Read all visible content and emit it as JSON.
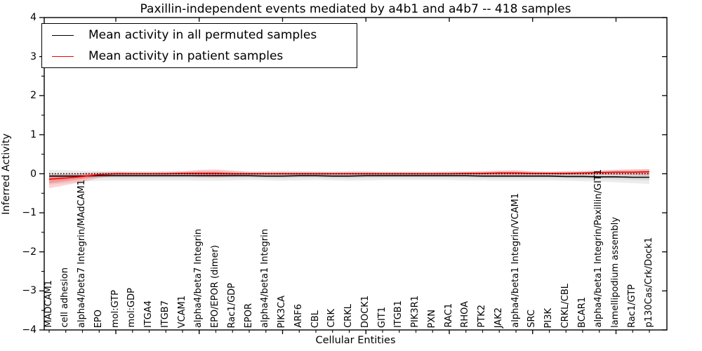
{
  "figure": {
    "title": "Paxillin-independent events mediated by a4b1 and a4b7 -- 418 samples",
    "xlabel": "Cellular Entities",
    "ylabel": "Inferred Activity"
  },
  "legend": {
    "items": [
      {
        "label": "Mean activity in all permuted samples",
        "color": "#000000"
      },
      {
        "label": "Mean activity in patient samples",
        "color": "#ff0000"
      }
    ],
    "position": "upper left"
  },
  "chart_data": {
    "type": "line",
    "title": "Paxillin-independent events mediated by a4b1 and a4b7 -- 418 samples",
    "xlabel": "Cellular Entities",
    "ylabel": "Inferred Activity",
    "ylim": [
      -4,
      4
    ],
    "yticks": [
      4,
      3,
      2,
      1,
      0,
      -1,
      -2,
      -3,
      -4
    ],
    "grid": false,
    "zero_line": true,
    "legend_position": "upper left",
    "categories": [
      "MADCAM1",
      "cell adhesion",
      "alpha4/beta7 Integrin/MAdCAM1",
      "EPO",
      "mol:GTP",
      "mol:GDP",
      "ITGA4",
      "ITGB7",
      "VCAM1",
      "alpha4/beta7 Integrin",
      "EPO/EPOR (dimer)",
      "Rac1/GDP",
      "EPOR",
      "alpha4/beta1 Integrin",
      "PIK3CA",
      "ARF6",
      "CBL",
      "CRK",
      "CRKL",
      "DOCK1",
      "GIT1",
      "ITGB1",
      "PIK3R1",
      "PXN",
      "RAC1",
      "RHOA",
      "PTK2",
      "JAK2",
      "alpha4/beta1 Integrin/VCAM1",
      "SRC",
      "PI3K",
      "CRKL/CBL",
      "BCAR1",
      "alpha4/beta1 Integrin/Paxillin/GIT1",
      "lamellipodium assembly",
      "Rac1/GTP",
      "p130Cas/Crk/Dock1"
    ],
    "series": [
      {
        "name": "Mean activity in all permuted samples",
        "color": "#000000",
        "band_color": "#aaaaaa",
        "values": [
          -0.06,
          -0.06,
          -0.06,
          -0.05,
          -0.05,
          -0.05,
          -0.05,
          -0.05,
          -0.05,
          -0.05,
          -0.05,
          -0.05,
          -0.05,
          -0.06,
          -0.06,
          -0.05,
          -0.05,
          -0.06,
          -0.06,
          -0.05,
          -0.05,
          -0.05,
          -0.05,
          -0.05,
          -0.05,
          -0.05,
          -0.06,
          -0.06,
          -0.06,
          -0.06,
          -0.06,
          -0.07,
          -0.07,
          -0.08,
          -0.08,
          -0.09,
          -0.09
        ],
        "band_lower": [
          -0.28,
          -0.24,
          -0.2,
          -0.18,
          -0.17,
          -0.17,
          -0.17,
          -0.17,
          -0.17,
          -0.18,
          -0.18,
          -0.17,
          -0.16,
          -0.17,
          -0.18,
          -0.17,
          -0.16,
          -0.17,
          -0.18,
          -0.17,
          -0.16,
          -0.16,
          -0.16,
          -0.16,
          -0.16,
          -0.17,
          -0.17,
          -0.18,
          -0.18,
          -0.17,
          -0.17,
          -0.18,
          -0.19,
          -0.2,
          -0.22,
          -0.24,
          -0.26
        ],
        "band_upper": [
          0.1,
          0.09,
          0.08,
          0.07,
          0.07,
          0.07,
          0.07,
          0.07,
          0.07,
          0.08,
          0.08,
          0.07,
          0.06,
          0.07,
          0.08,
          0.07,
          0.06,
          0.06,
          0.07,
          0.07,
          0.06,
          0.06,
          0.06,
          0.06,
          0.06,
          0.07,
          0.07,
          0.07,
          0.07,
          0.06,
          0.06,
          0.07,
          0.08,
          0.09,
          0.1,
          0.11,
          0.12
        ]
      },
      {
        "name": "Mean activity in patient samples",
        "color": "#ff0000",
        "band_color": "#ff3333",
        "values": [
          -0.14,
          -0.11,
          -0.07,
          -0.02,
          0.0,
          0.0,
          0.0,
          0.0,
          0.01,
          0.01,
          0.01,
          0.0,
          0.0,
          0.0,
          0.0,
          0.0,
          0.0,
          0.0,
          0.0,
          0.0,
          0.0,
          0.0,
          0.0,
          0.0,
          0.0,
          0.01,
          0.01,
          0.02,
          0.02,
          0.01,
          0.01,
          0.01,
          0.02,
          0.03,
          0.04,
          0.04,
          0.05
        ],
        "band_lower": [
          -0.37,
          -0.29,
          -0.21,
          -0.1,
          -0.05,
          -0.04,
          -0.04,
          -0.04,
          -0.05,
          -0.08,
          -0.09,
          -0.07,
          -0.04,
          -0.04,
          -0.04,
          -0.04,
          -0.04,
          -0.04,
          -0.04,
          -0.04,
          -0.04,
          -0.04,
          -0.04,
          -0.04,
          -0.04,
          -0.04,
          -0.05,
          -0.05,
          -0.05,
          -0.04,
          -0.04,
          -0.04,
          -0.04,
          -0.03,
          -0.03,
          -0.03,
          -0.04
        ],
        "band_upper": [
          -0.02,
          -0.01,
          0.02,
          0.04,
          0.05,
          0.04,
          0.04,
          0.05,
          0.06,
          0.1,
          0.11,
          0.08,
          0.05,
          0.05,
          0.05,
          0.05,
          0.05,
          0.04,
          0.05,
          0.05,
          0.04,
          0.04,
          0.04,
          0.04,
          0.05,
          0.05,
          0.06,
          0.08,
          0.09,
          0.06,
          0.05,
          0.06,
          0.06,
          0.08,
          0.1,
          0.11,
          0.12
        ]
      }
    ]
  }
}
